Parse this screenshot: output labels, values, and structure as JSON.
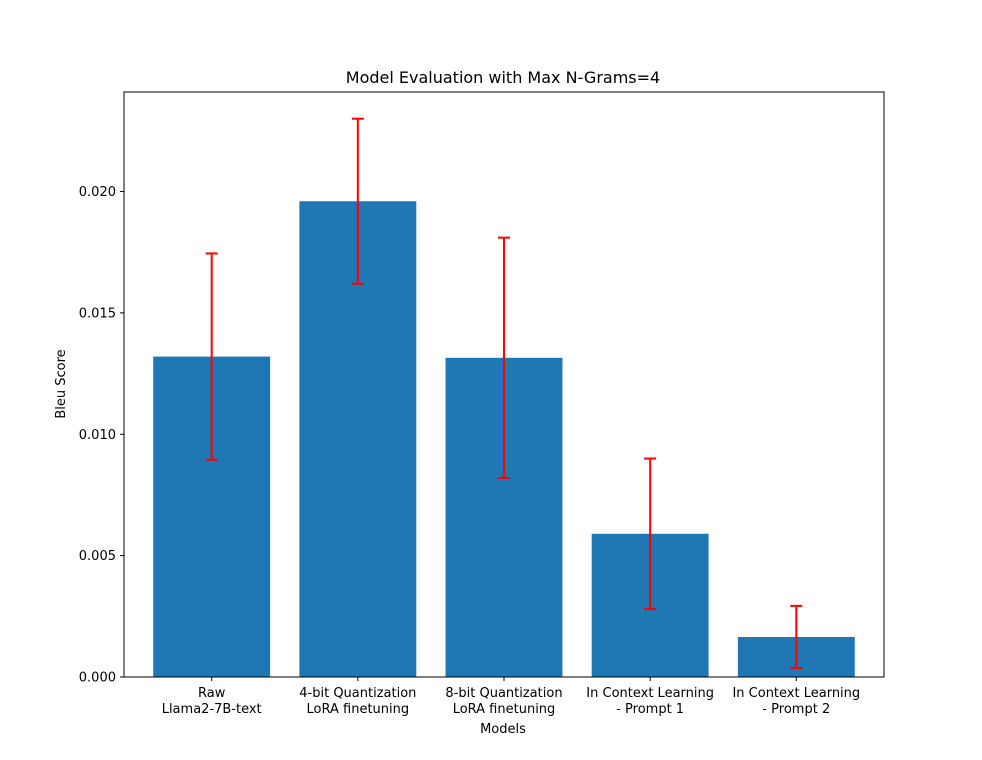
{
  "chart_data": {
    "type": "bar",
    "title": "Model Evaluation with Max N-Grams=4",
    "xlabel": "Models",
    "ylabel": "Bleu Score",
    "categories": [
      [
        "Raw",
        "Llama2-7B-text"
      ],
      [
        "4-bit Quantization",
        "LoRA finetuning"
      ],
      [
        "8-bit Quantization",
        "LoRA finetuning"
      ],
      [
        "In Context Learning",
        "- Prompt 1"
      ],
      [
        "In Context Learning",
        "- Prompt 2"
      ]
    ],
    "values": [
      0.0132,
      0.0196,
      0.01315,
      0.0059,
      0.00165
    ],
    "error": [
      0.00425,
      0.0034,
      0.00495,
      0.0031,
      0.00128
    ],
    "ylim": [
      0,
      0.0241
    ],
    "yticks": [
      "0.000",
      "0.005",
      "0.010",
      "0.015",
      "0.020"
    ],
    "yticks_values": [
      0,
      0.005,
      0.01,
      0.015,
      0.02
    ],
    "grid": false,
    "colors": {
      "bar": "#1f77b4",
      "error": "#ff0000",
      "axis": "#000000"
    }
  }
}
